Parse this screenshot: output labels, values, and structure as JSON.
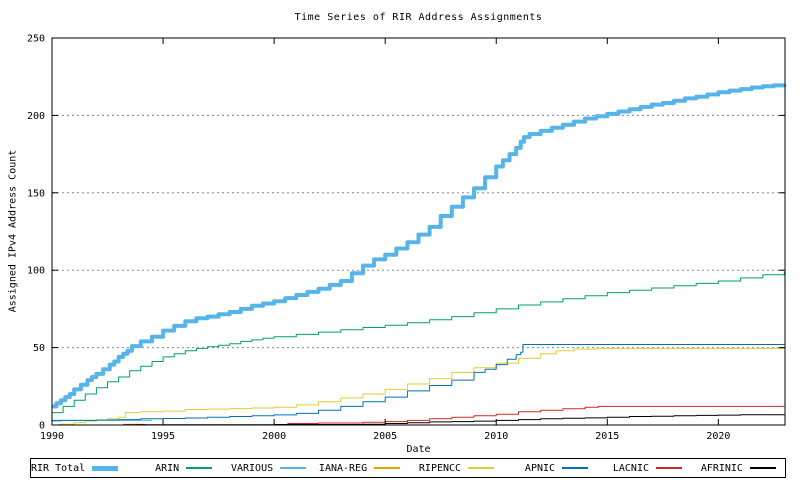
{
  "chart_data": {
    "type": "line",
    "title": "Time Series of RIR Address Assignments",
    "xlabel": "Date",
    "ylabel": "Assigned IPv4 Address Count",
    "xlim": [
      1990,
      2023
    ],
    "ylim": [
      0,
      250
    ],
    "x_ticks": [
      1990,
      1995,
      2000,
      2005,
      2010,
      2015,
      2020
    ],
    "y_ticks": [
      0,
      50,
      100,
      150,
      200,
      250
    ],
    "grid": "horizontal dotted gridlines at labeled y ticks",
    "legend_position": "bottom",
    "style": {
      "background": "#ffffff",
      "border_color": "#000000",
      "grid_color": "#888888",
      "line_interpolation": "steps-post"
    },
    "series": [
      {
        "name": "RIR Total",
        "color": "#56b4e9",
        "width": 4,
        "segments": [
          [
            [
              1990,
              12
            ],
            [
              1990.2,
              14
            ],
            [
              1990.4,
              16
            ],
            [
              1990.6,
              18
            ],
            [
              1990.8,
              20
            ],
            [
              1991,
              23
            ],
            [
              1991.3,
              26
            ],
            [
              1991.6,
              29
            ],
            [
              1991.8,
              31
            ],
            [
              1992,
              33
            ],
            [
              1992.3,
              36
            ],
            [
              1992.6,
              39
            ],
            [
              1992.8,
              41
            ],
            [
              1993,
              44
            ],
            [
              1993.2,
              46
            ],
            [
              1993.4,
              48
            ],
            [
              1993.6,
              51
            ],
            [
              1994,
              54
            ],
            [
              1994.5,
              57
            ],
            [
              1995,
              61
            ],
            [
              1995.5,
              64
            ],
            [
              1996,
              67
            ],
            [
              1996.5,
              69
            ],
            [
              1997,
              70
            ],
            [
              1997.5,
              71.5
            ],
            [
              1998,
              73
            ],
            [
              1998.5,
              75
            ],
            [
              1999,
              77
            ],
            [
              1999.5,
              78.5
            ],
            [
              2000,
              80
            ],
            [
              2000.5,
              82
            ],
            [
              2001,
              84
            ],
            [
              2001.5,
              86
            ],
            [
              2002,
              88
            ],
            [
              2002.5,
              90.5
            ],
            [
              2003,
              93
            ],
            [
              2003.5,
              98
            ],
            [
              2004,
              103
            ],
            [
              2004.5,
              107
            ],
            [
              2005,
              110
            ],
            [
              2005.5,
              114
            ],
            [
              2006,
              118
            ],
            [
              2006.5,
              123
            ],
            [
              2007,
              128
            ],
            [
              2007.5,
              135
            ],
            [
              2008,
              141
            ],
            [
              2008.5,
              147
            ],
            [
              2009,
              153
            ],
            [
              2009.5,
              160
            ],
            [
              2010,
              167
            ],
            [
              2010.3,
              171
            ],
            [
              2010.6,
              175
            ],
            [
              2010.9,
              179
            ],
            [
              2011.1,
              183
            ],
            [
              2011.25,
              186
            ],
            [
              2011.5,
              188
            ],
            [
              2012,
              190
            ],
            [
              2012.5,
              192
            ],
            [
              2013,
              194
            ],
            [
              2013.5,
              196
            ],
            [
              2014,
              198
            ],
            [
              2014.5,
              199.5
            ],
            [
              2015,
              201
            ],
            [
              2015.5,
              202.5
            ],
            [
              2016,
              204
            ],
            [
              2016.5,
              205.5
            ],
            [
              2017,
              207
            ],
            [
              2017.5,
              208
            ],
            [
              2018,
              209.5
            ],
            [
              2018.5,
              211
            ],
            [
              2019,
              212
            ],
            [
              2019.5,
              213.5
            ],
            [
              2020,
              215
            ],
            [
              2020.5,
              216
            ],
            [
              2021,
              217
            ],
            [
              2021.5,
              218
            ],
            [
              2022,
              218.8
            ],
            [
              2022.5,
              219.4
            ],
            [
              2022.97,
              220
            ]
          ]
        ]
      },
      {
        "name": "ARIN",
        "color": "#009e73",
        "width": 1,
        "segments": [
          [
            [
              1990,
              8
            ],
            [
              1990.5,
              12
            ],
            [
              1991,
              16
            ],
            [
              1991.5,
              20
            ],
            [
              1992,
              24
            ],
            [
              1992.5,
              28
            ],
            [
              1993,
              31
            ],
            [
              1993.5,
              35
            ],
            [
              1994,
              38
            ],
            [
              1994.5,
              41
            ],
            [
              1995,
              44
            ],
            [
              1995.5,
              46
            ],
            [
              1996,
              48
            ],
            [
              1996.5,
              49.5
            ],
            [
              1997,
              50.5
            ],
            [
              1997.5,
              51.5
            ],
            [
              1998,
              52.5
            ],
            [
              1998.5,
              54
            ],
            [
              1999,
              55
            ],
            [
              1999.5,
              56
            ],
            [
              2000,
              57
            ],
            [
              2001,
              58.5
            ],
            [
              2002,
              60
            ],
            [
              2003,
              61.5
            ],
            [
              2004,
              63
            ],
            [
              2005,
              64.5
            ],
            [
              2006,
              66
            ],
            [
              2007,
              68
            ],
            [
              2008,
              70
            ],
            [
              2009,
              72.5
            ],
            [
              2010,
              75
            ],
            [
              2011,
              77.5
            ],
            [
              2012,
              79.5
            ],
            [
              2013,
              81.5
            ],
            [
              2014,
              83.5
            ],
            [
              2015,
              85.5
            ],
            [
              2016,
              87
            ],
            [
              2017,
              88.5
            ],
            [
              2018,
              90
            ],
            [
              2019,
              91.5
            ],
            [
              2020,
              93
            ],
            [
              2021,
              95
            ],
            [
              2022,
              97
            ],
            [
              2022.97,
              99
            ]
          ]
        ]
      },
      {
        "name": "VARIOUS",
        "color": "#56b4e9",
        "width": 1,
        "segments": [
          [
            [
              1990,
              2.5
            ],
            [
              1990.4,
              3
            ],
            [
              1994.5,
              3
            ]
          ]
        ]
      },
      {
        "name": "IANA-REG",
        "color": "#e69f00",
        "width": 1,
        "segments": [
          [
            [
              1990,
              0
            ],
            [
              2022.97,
              0
            ]
          ]
        ]
      },
      {
        "name": "RIPENCC",
        "color": "#e0ce30",
        "width": 1,
        "segments": [
          [
            [
              1990.3,
              0.5
            ],
            [
              1991,
              1.5
            ],
            [
              1991.5,
              2.5
            ],
            [
              1992,
              3
            ],
            [
              1992.5,
              4
            ],
            [
              1993,
              5
            ],
            [
              1993.3,
              8
            ],
            [
              1994,
              8.5
            ],
            [
              1995,
              9
            ],
            [
              1996,
              10
            ],
            [
              1997,
              10.3
            ],
            [
              1998,
              10.6
            ],
            [
              1999,
              11
            ],
            [
              2000,
              11.5
            ],
            [
              2001,
              13
            ],
            [
              2002,
              15
            ],
            [
              2003,
              17.5
            ],
            [
              2004,
              20
            ],
            [
              2005,
              23
            ],
            [
              2006,
              26.5
            ],
            [
              2007,
              30
            ],
            [
              2008,
              34
            ],
            [
              2009,
              37
            ],
            [
              2010,
              40
            ],
            [
              2011,
              43
            ],
            [
              2012,
              46
            ],
            [
              2012.7,
              48
            ],
            [
              2013.5,
              49
            ],
            [
              2014.5,
              49.5
            ],
            [
              2022.97,
              49.5
            ]
          ]
        ]
      },
      {
        "name": "APNIC",
        "color": "#0072b2",
        "width": 1,
        "segments": [
          [
            [
              1990,
              3
            ],
            [
              1991,
              3
            ],
            [
              1992,
              3.2
            ],
            [
              1993,
              3.5
            ],
            [
              1994,
              4
            ],
            [
              1995,
              4.2
            ],
            [
              1996,
              4.5
            ],
            [
              1997,
              5
            ],
            [
              1998,
              5.5
            ],
            [
              1999,
              6
            ],
            [
              2000,
              6.5
            ],
            [
              2001,
              7.5
            ],
            [
              2002,
              9.5
            ],
            [
              2003,
              12
            ],
            [
              2004,
              15
            ],
            [
              2005,
              18
            ],
            [
              2006,
              22
            ],
            [
              2007,
              25.5
            ],
            [
              2008,
              29
            ],
            [
              2009,
              34
            ],
            [
              2009.5,
              36
            ],
            [
              2010,
              39
            ],
            [
              2010.5,
              42.5
            ],
            [
              2010.9,
              45.5
            ],
            [
              2011.1,
              47
            ],
            [
              2011.2,
              52
            ],
            [
              2022.97,
              52
            ]
          ]
        ]
      },
      {
        "name": "LACNIC",
        "color": "#cc2a1e",
        "width": 1,
        "segments": [
          [
            [
              1993.2,
              0.4
            ],
            [
              1994.2,
              0.4
            ]
          ],
          [
            [
              2000.6,
              1
            ],
            [
              2002,
              1.3
            ],
            [
              2004,
              1.8
            ],
            [
              2005,
              2.2
            ],
            [
              2006,
              3
            ],
            [
              2007,
              4
            ],
            [
              2008,
              5
            ],
            [
              2009,
              6
            ],
            [
              2010,
              7
            ],
            [
              2011,
              8.5
            ],
            [
              2012,
              9.5
            ],
            [
              2013,
              10.5
            ],
            [
              2014,
              11.5
            ],
            [
              2014.6,
              12
            ],
            [
              2022.97,
              12
            ]
          ]
        ]
      },
      {
        "name": "AFRINIC",
        "color": "#000000",
        "width": 1,
        "segments": [
          [
            [
              1993.8,
              0.2
            ],
            [
              2000,
              0.3
            ],
            [
              2004,
              0.5
            ],
            [
              2005,
              1
            ],
            [
              2006,
              1.5
            ],
            [
              2007,
              2
            ],
            [
              2008,
              2.2
            ],
            [
              2009,
              2.5
            ],
            [
              2010,
              3
            ],
            [
              2011,
              3.5
            ],
            [
              2012,
              4
            ],
            [
              2013,
              4.3
            ],
            [
              2014,
              4.6
            ],
            [
              2015,
              5
            ],
            [
              2016,
              5.5
            ],
            [
              2017,
              5.7
            ],
            [
              2018,
              6
            ],
            [
              2019,
              6.2
            ],
            [
              2020,
              6.4
            ],
            [
              2021,
              6.6
            ],
            [
              2022.97,
              6.7
            ]
          ]
        ]
      }
    ]
  }
}
